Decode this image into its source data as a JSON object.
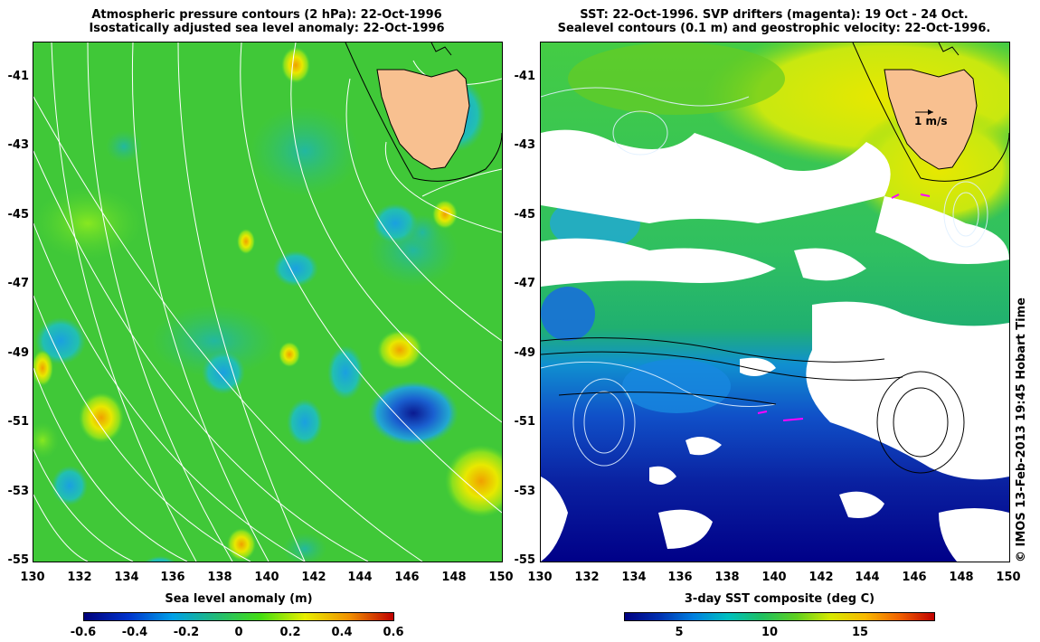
{
  "left_panel": {
    "title_line1": "Atmospheric pressure contours (2 hPa): 22-Oct-1996",
    "title_line2": "Isostatically adjusted sea level anomaly: 22-Oct-1996",
    "colorbar_title": "Sea level anomaly (m)",
    "colorbar_ticks": [
      "-0.6",
      "-0.4",
      "-0.2",
      "0",
      "0.2",
      "0.4",
      "0.6"
    ],
    "colorbar_colors": [
      "#00007a",
      "#0033cc",
      "#00a0e8",
      "#22bb77",
      "#44dd11",
      "#e8ee00",
      "#f09000",
      "#c00000"
    ]
  },
  "right_panel": {
    "title_line1": "SST: 22-Oct-1996. SVP drifters (magenta): 19 Oct - 24 Oct.",
    "title_line2": "Sealevel contours (0.1 m) and geostrophic velocity: 22-Oct-1996.",
    "colorbar_title": "3-day SST composite (deg C)",
    "colorbar_ticks": [
      "5",
      "10",
      "15"
    ],
    "scale_arrow_label": "1 m/s",
    "colorbar_colors": [
      "#000080",
      "#0030b0",
      "#0080e0",
      "#00c0c0",
      "#20c060",
      "#60d020",
      "#d8e800",
      "#f8b800",
      "#f06000",
      "#c00000"
    ]
  },
  "axes": {
    "y_ticks": [
      "-41",
      "-43",
      "-45",
      "-47",
      "-49",
      "-51",
      "-53",
      "-55"
    ],
    "x_ticks": [
      "130",
      "132",
      "134",
      "136",
      "138",
      "140",
      "142",
      "144",
      "146",
      "148",
      "150"
    ]
  },
  "copyright": "© IMOS 13-Feb-2013 19:45 Hobart Time",
  "colors": {
    "land": "#f8c090",
    "ocean_green": "#44cc33",
    "cloud": "#ffffff"
  }
}
